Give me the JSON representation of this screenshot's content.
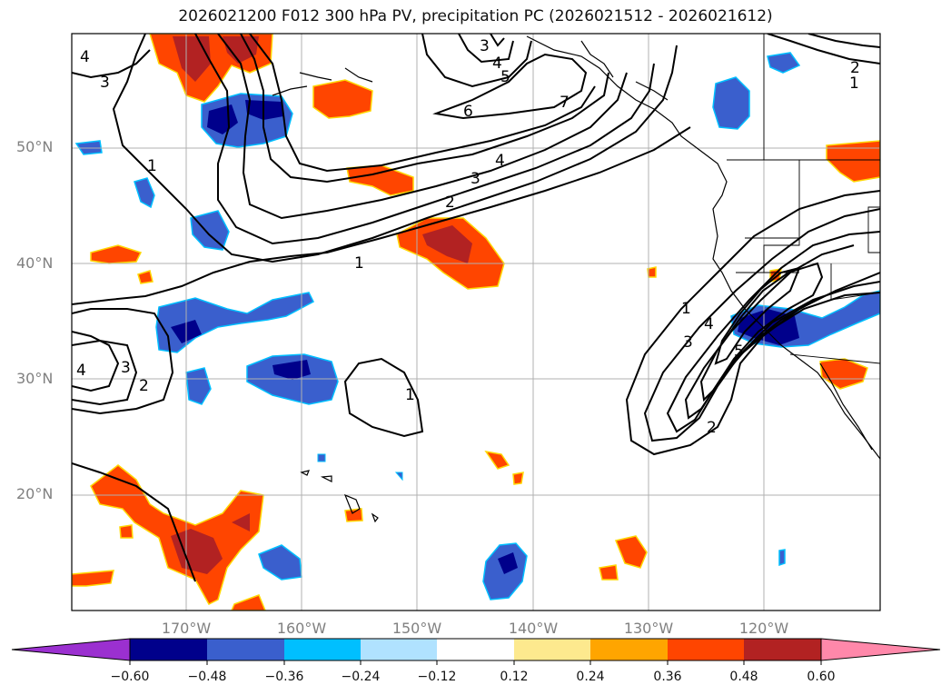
{
  "title": "2026021200 F012 300 hPa PV, precipitation PC (2026021512 - 2026021612)",
  "lat_labels": [
    "50°N",
    "40°N",
    "30°N",
    "20°N"
  ],
  "lon_labels": [
    "170°W",
    "160°W",
    "150°W",
    "140°W",
    "130°W",
    "120°W"
  ],
  "colorbar": {
    "ticks": [
      "−0.60",
      "−0.48",
      "−0.36",
      "−0.24",
      "−0.12",
      "0.12",
      "0.24",
      "0.36",
      "0.48",
      "0.60"
    ],
    "colors": [
      "#9b30d0",
      "#00008b",
      "#3a5fcd",
      "#00bfff",
      "#b0e2ff",
      "#ffffff",
      "#fde98e",
      "#ffa500",
      "#ff4500",
      "#b22222",
      "#ff88aa"
    ]
  },
  "contour_labels": {
    "c1": "1",
    "c2": "2",
    "c3": "3",
    "c4": "4",
    "c5": "5",
    "c6": "6",
    "c7": "7"
  }
}
